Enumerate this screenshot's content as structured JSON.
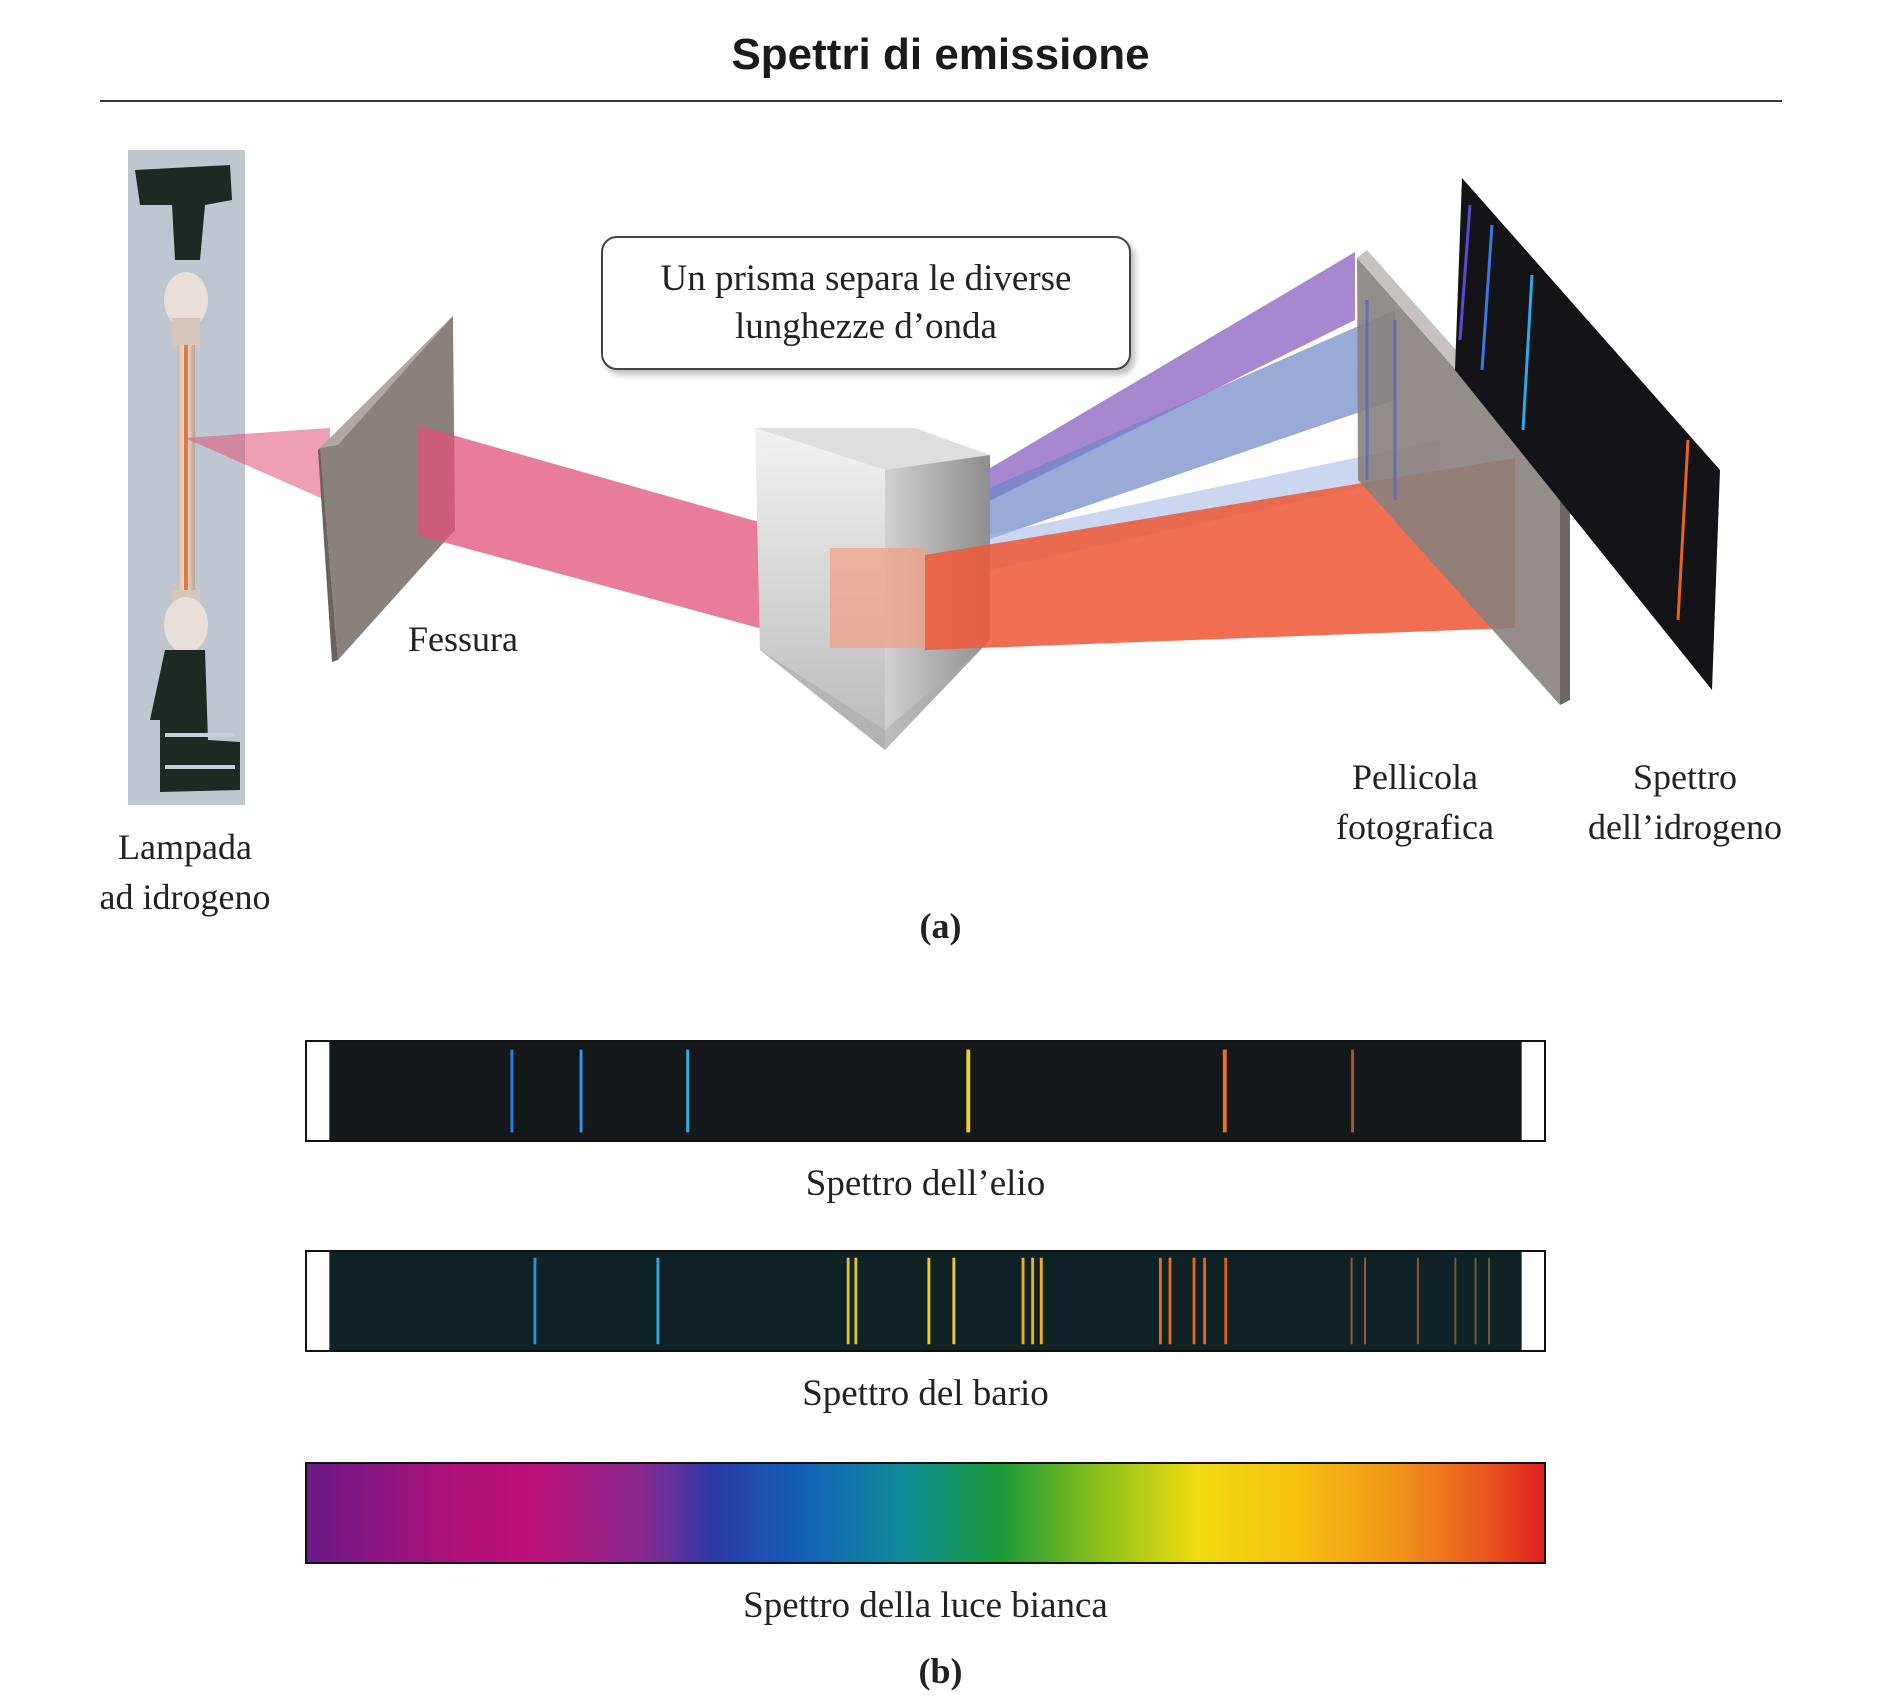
{
  "title": "Spettri di emissione",
  "part_a": {
    "lamp_label": [
      "Lampada",
      "ad idrogeno"
    ],
    "slit_label": "Fessura",
    "callout": [
      "Un prisma separa le diverse",
      "lunghezze d’onda"
    ],
    "film_label": [
      "Pellicola",
      "fotografica"
    ],
    "spectrum_label": [
      "Spettro",
      "dell’idrogeno"
    ],
    "caption": "(a)"
  },
  "part_b": {
    "helium_caption": "Spettro dell’elio",
    "barium_caption": "Spettro del bario",
    "white_caption": "Spettro della luce bianca",
    "caption": "(b)"
  },
  "colors": {
    "beam_incident": "#e0507a",
    "beam_red": "#ee5a3a",
    "beam_violet": "#8a5fc0",
    "beam_blue": "#6f86c8",
    "screen_dark": "#141418",
    "slit_gray": "#7f7670"
  }
}
